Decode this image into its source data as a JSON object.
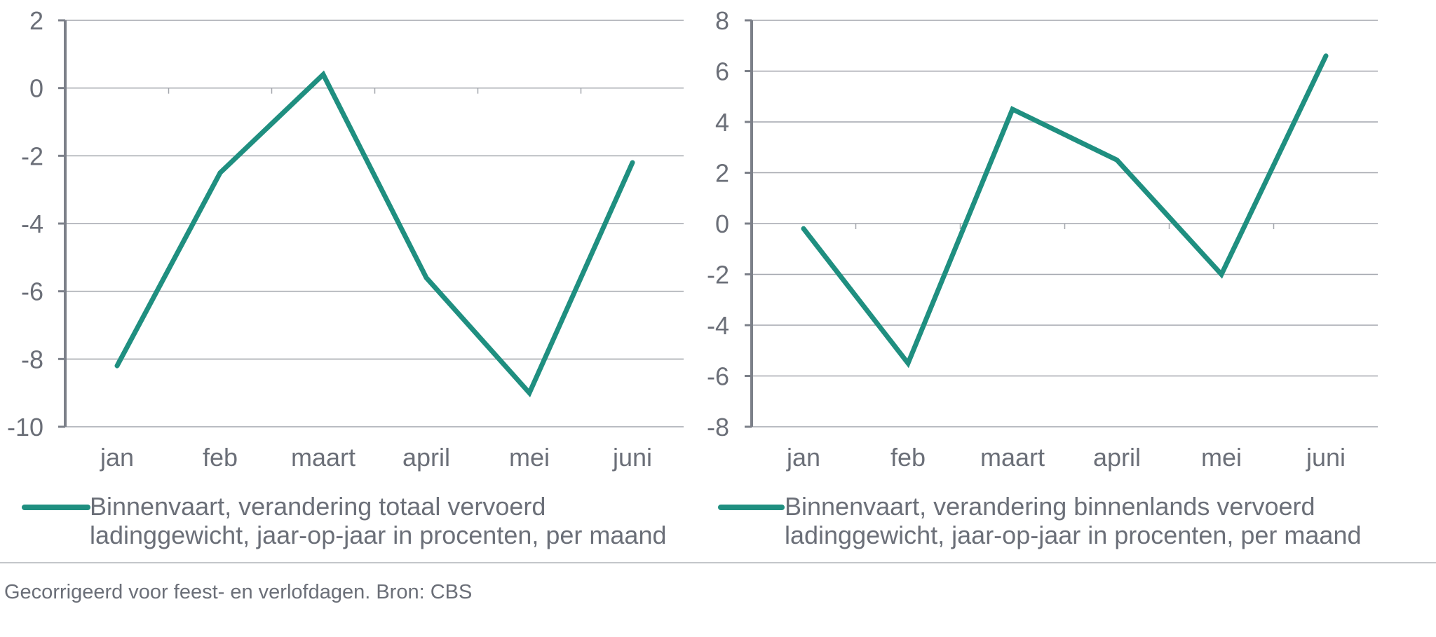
{
  "colors": {
    "line": "#1f8f80",
    "axis": "#7c8089",
    "grid": "#a3a6ad",
    "text": "#6b6f78",
    "divider": "#c4c6ca"
  },
  "chart_data": [
    {
      "type": "line",
      "categories": [
        "jan",
        "feb",
        "maart",
        "april",
        "mei",
        "juni"
      ],
      "series": [
        {
          "name": "Binnenvaart, verandering totaal vervoerd ladinggewicht, jaar-op-jaar in procenten, per maand",
          "values": [
            -8.2,
            -2.5,
            0.4,
            -5.6,
            -9.0,
            -2.2
          ]
        }
      ],
      "ylim": [
        -10,
        2
      ],
      "yticks": [
        2,
        0,
        -2,
        -4,
        -6,
        -8,
        -10
      ],
      "legend": {
        "position": "bottom",
        "lines": [
          "Binnenvaart, verandering totaal vervoerd",
          "ladinggewicht, jaar-op-jaar in procenten, per maand"
        ]
      },
      "grid": true
    },
    {
      "type": "line",
      "categories": [
        "jan",
        "feb",
        "maart",
        "april",
        "mei",
        "juni"
      ],
      "series": [
        {
          "name": "Binnenvaart, verandering binnenlands vervoerd ladinggewicht, jaar-op-jaar in procenten, per maand",
          "values": [
            -0.2,
            -5.5,
            4.5,
            2.5,
            -2.0,
            6.6
          ]
        }
      ],
      "ylim": [
        -8,
        8
      ],
      "yticks": [
        8,
        6,
        4,
        2,
        0,
        -2,
        -4,
        -6,
        -8
      ],
      "legend": {
        "position": "bottom",
        "lines": [
          "Binnenvaart, verandering binnenlands vervoerd",
          "ladinggewicht, jaar-op-jaar in procenten, per maand"
        ]
      },
      "grid": true
    }
  ],
  "footnote": "Gecorrigeerd voor feest- en verlofdagen. Bron: CBS"
}
